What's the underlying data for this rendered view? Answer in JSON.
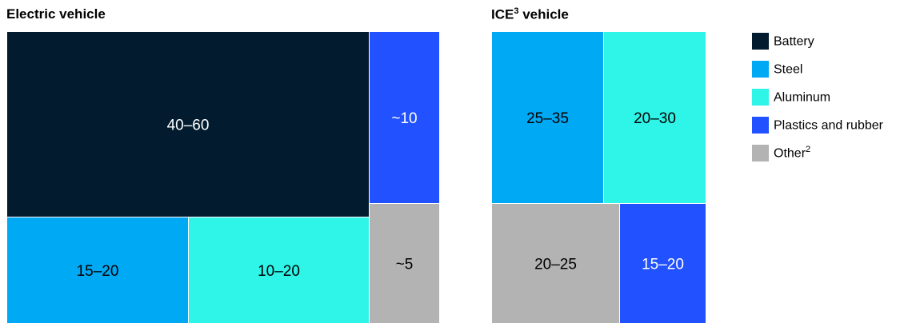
{
  "chart_data": [
    {
      "type": "treemap",
      "title": "Electric vehicle",
      "title_superscript": "",
      "unit": "",
      "cells": [
        {
          "category": "Battery",
          "label": "40–60",
          "value": 50
        },
        {
          "category": "Plastics and rubber",
          "label": "~10",
          "value": 10
        },
        {
          "category": "Steel",
          "label": "15–20",
          "value": 17.5
        },
        {
          "category": "Aluminum",
          "label": "10–20",
          "value": 15
        },
        {
          "category": "Other",
          "label": "~5",
          "value": 5
        }
      ]
    },
    {
      "type": "treemap",
      "title": "ICE",
      "title_superscript": "3",
      "title_suffix": " vehicle",
      "unit": "",
      "cells": [
        {
          "category": "Steel",
          "label": "25–35",
          "value": 30
        },
        {
          "category": "Aluminum",
          "label": "20–30",
          "value": 25
        },
        {
          "category": "Other",
          "label": "20–25",
          "value": 22.5
        },
        {
          "category": "Plastics and rubber",
          "label": "15–20",
          "value": 17.5
        }
      ]
    }
  ],
  "legend": [
    {
      "name": "Battery",
      "superscript": "",
      "color": "#021b2e"
    },
    {
      "name": "Steel",
      "superscript": "",
      "color": "#00a9f4"
    },
    {
      "name": "Aluminum",
      "superscript": "",
      "color": "#2ef5e8"
    },
    {
      "name": "Plastics and rubber",
      "superscript": "",
      "color": "#2251ff"
    },
    {
      "name": "Other",
      "superscript": "2",
      "color": "#b3b3b3"
    }
  ]
}
